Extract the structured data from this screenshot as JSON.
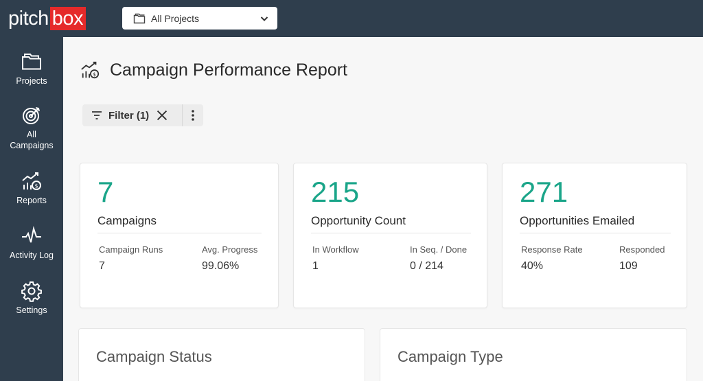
{
  "app": {
    "logo_pitch": "pitch",
    "logo_box": "box",
    "brand_red": "#e52a2a",
    "topbar_color": "#2f3e4d",
    "accent": "#1aa589"
  },
  "project_select": {
    "label": "All Projects",
    "icon": "folder-icon"
  },
  "sidebar": {
    "items": [
      {
        "label": "Projects",
        "icon": "folder-icon"
      },
      {
        "label": "All\nCampaigns",
        "label_line1": "All",
        "label_line2": "Campaigns",
        "icon": "target-icon"
      },
      {
        "label": "Reports",
        "icon": "reports-icon"
      },
      {
        "label": "Activity Log",
        "icon": "pulse-icon"
      },
      {
        "label": "Settings",
        "icon": "gear-icon"
      }
    ]
  },
  "page": {
    "title": "Campaign Performance Report"
  },
  "filter": {
    "label": "Filter (1)"
  },
  "cards": [
    {
      "value": "7",
      "name": "Campaigns",
      "left_label": "Campaign Runs",
      "left_value": "7",
      "right_label": "Avg. Progress",
      "right_value": "99.06%"
    },
    {
      "value": "215",
      "name": "Opportunity Count",
      "left_label": "In Workflow",
      "left_value": "1",
      "right_label": "In Seq. / Done",
      "right_value": "0 / 214"
    },
    {
      "value": "271",
      "name": "Opportunities Emailed",
      "left_label": "Response Rate",
      "left_value": "40%",
      "right_label": "Responded",
      "right_value": "109"
    }
  ],
  "sections": [
    {
      "title": "Campaign Status"
    },
    {
      "title": "Campaign Type"
    }
  ]
}
